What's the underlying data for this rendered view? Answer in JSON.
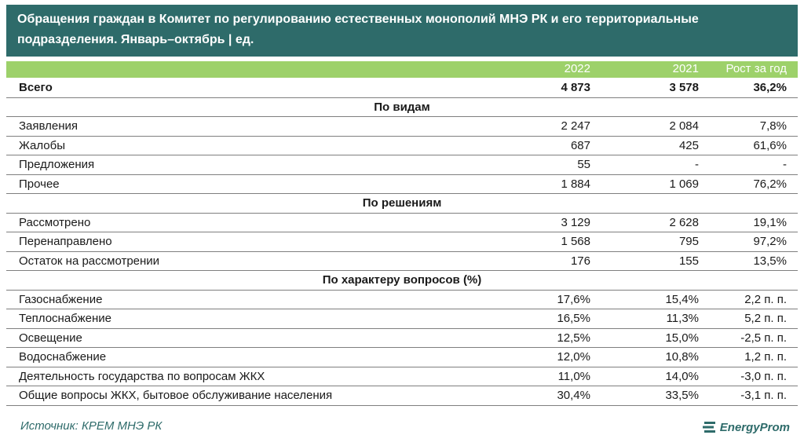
{
  "title": {
    "line1": "Обращения граждан в Комитет по регулированию естественных монополий МНЭ РК и его территориальные",
    "line2": "подразделения. Январь–октябрь | ед."
  },
  "columns": {
    "c1": "2022",
    "c2": "2021",
    "c3": "Рост за год"
  },
  "total": {
    "label": "Всего",
    "c1": "4 873",
    "c2": "3 578",
    "c3": "36,2%"
  },
  "sections": {
    "types": {
      "title": "По видам",
      "rows": [
        {
          "label": "Заявления",
          "c1": "2 247",
          "c2": "2 084",
          "c3": "7,8%"
        },
        {
          "label": "Жалобы",
          "c1": "687",
          "c2": "425",
          "c3": "61,6%"
        },
        {
          "label": "Предложения",
          "c1": "55",
          "c2": "-",
          "c3": "-"
        },
        {
          "label": "Прочее",
          "c1": "1 884",
          "c2": "1 069",
          "c3": "76,2%"
        }
      ]
    },
    "decisions": {
      "title": "По решениям",
      "rows": [
        {
          "label": "Рассмотрено",
          "c1": "3 129",
          "c2": "2 628",
          "c3": "19,1%"
        },
        {
          "label": "Перенаправлено",
          "c1": "1 568",
          "c2": "795",
          "c3": "97,2%"
        },
        {
          "label": "Остаток на рассмотрении",
          "c1": "176",
          "c2": "155",
          "c3": "13,5%"
        }
      ]
    },
    "topics": {
      "title": "По характеру вопросов (%)",
      "rows": [
        {
          "label": "Газоснабжение",
          "c1": "17,6%",
          "c2": "15,4%",
          "c3": "2,2 п. п."
        },
        {
          "label": "Теплоснабжение",
          "c1": "16,5%",
          "c2": "11,3%",
          "c3": "5,2 п. п."
        },
        {
          "label": "Освещение",
          "c1": "12,5%",
          "c2": "15,0%",
          "c3": "-2,5 п. п."
        },
        {
          "label": "Водоснабжение",
          "c1": "12,0%",
          "c2": "10,8%",
          "c3": "1,2 п. п."
        },
        {
          "label": "Деятельность государства по вопросам ЖКХ",
          "c1": "11,0%",
          "c2": "14,0%",
          "c3": "-3,0 п. п."
        },
        {
          "label": "Общие вопросы ЖКХ, бытовое обслуживание населения",
          "c1": "30,4%",
          "c2": "33,5%",
          "c3": "-3,1 п. п."
        }
      ]
    }
  },
  "footer": {
    "source": "Источник: КРЕМ МНЭ РК",
    "brand": "EnergyProm"
  },
  "colors": {
    "title_bg": "#2e6b6a",
    "header_bg": "#9dd16a",
    "text": "#1a1a1a"
  }
}
